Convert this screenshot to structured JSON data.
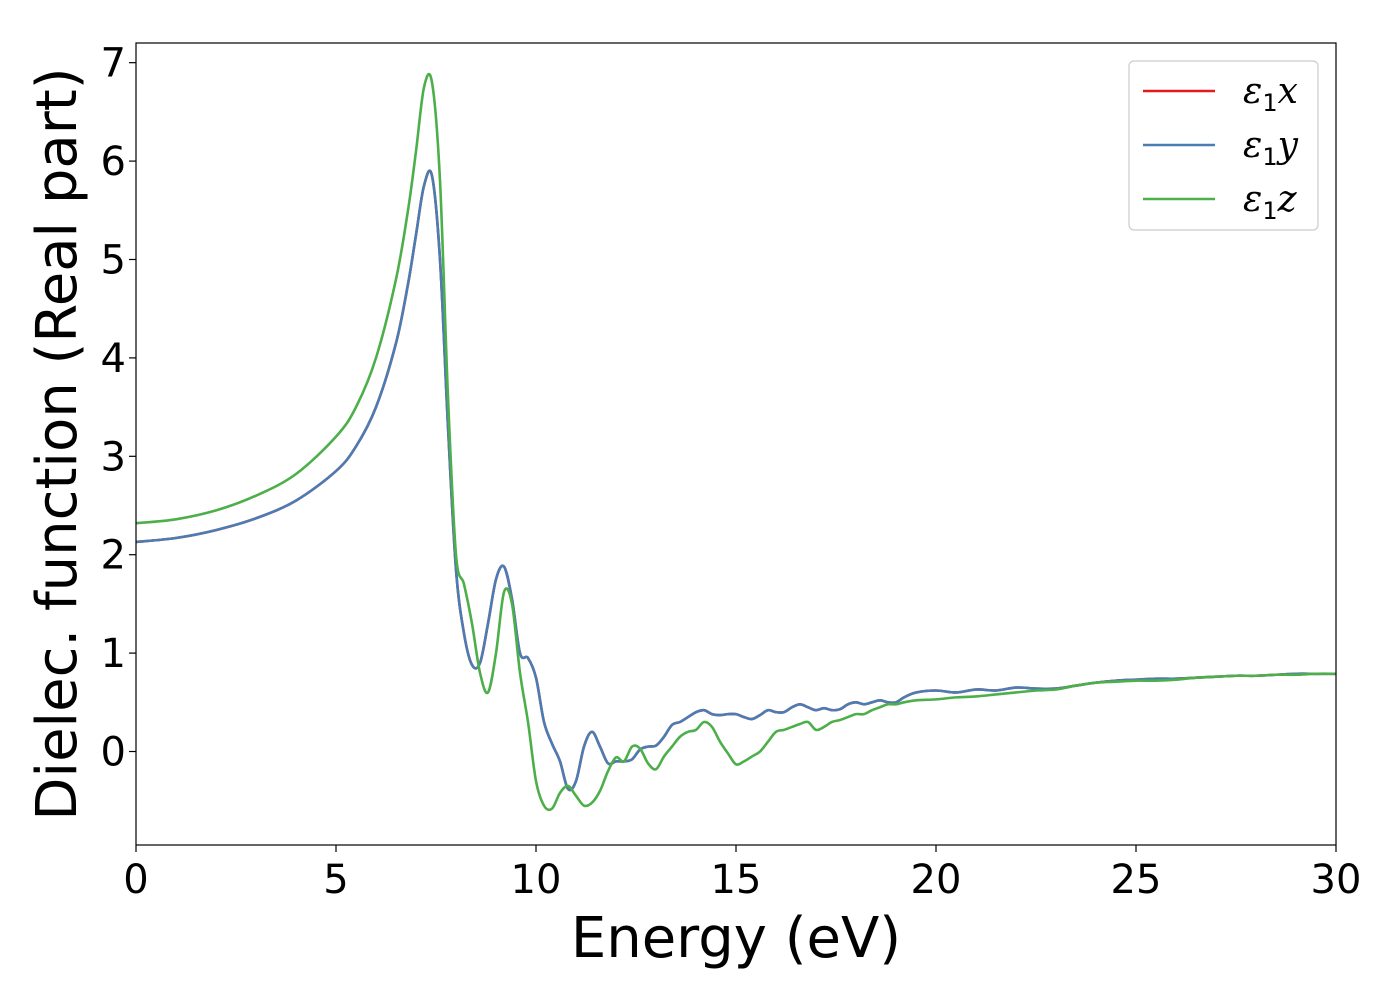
{
  "chart_data": {
    "type": "line",
    "xlabel": "Energy (eV)",
    "ylabel": "Dielec. function (Real part)",
    "xlim": [
      0,
      30
    ],
    "ylim": [
      -0.95,
      7.2
    ],
    "xticks": [
      0,
      5,
      10,
      15,
      20,
      25,
      30
    ],
    "yticks": [
      0,
      1,
      2,
      3,
      4,
      5,
      6,
      7
    ],
    "grid": false,
    "legend_position": "top-right",
    "series": [
      {
        "name": "ε1x",
        "color": "#e41a1c",
        "x": [
          0,
          1,
          2,
          3,
          4,
          5,
          5.5,
          6,
          6.5,
          6.8,
          7.0,
          7.2,
          7.4,
          7.6,
          7.8,
          8.0,
          8.2,
          8.4,
          8.6,
          8.8,
          9.0,
          9.2,
          9.4,
          9.6,
          9.8,
          10.0,
          10.2,
          10.4,
          10.6,
          10.8,
          11.0,
          11.2,
          11.4,
          11.6,
          11.8,
          12.0,
          12.2,
          12.4,
          12.6,
          12.8,
          13.0,
          13.2,
          13.4,
          13.6,
          13.8,
          14.0,
          14.2,
          14.4,
          14.6,
          14.8,
          15.0,
          15.2,
          15.4,
          15.6,
          15.8,
          16.0,
          16.2,
          16.4,
          16.6,
          16.8,
          17.0,
          17.2,
          17.4,
          17.6,
          17.8,
          18.0,
          18.2,
          18.4,
          18.6,
          18.8,
          19.0,
          19.2,
          19.5,
          20.0,
          20.5,
          21.0,
          21.5,
          22.0,
          22.5,
          23.0,
          23.5,
          24.0,
          24.5,
          25.0,
          25.5,
          26.0,
          26.5,
          27.0,
          27.5,
          28.0,
          28.5,
          29.0,
          29.5,
          30.0
        ],
        "y": [
          2.13,
          2.17,
          2.25,
          2.37,
          2.55,
          2.85,
          3.1,
          3.5,
          4.15,
          4.75,
          5.25,
          5.75,
          5.85,
          5.0,
          3.3,
          1.85,
          1.2,
          0.88,
          0.9,
          1.3,
          1.75,
          1.88,
          1.55,
          1.0,
          0.95,
          0.75,
          0.3,
          0.08,
          -0.1,
          -0.38,
          -0.3,
          0.05,
          0.2,
          0.05,
          -0.12,
          -0.1,
          -0.1,
          -0.08,
          0.02,
          0.05,
          0.06,
          0.15,
          0.27,
          0.3,
          0.35,
          0.4,
          0.42,
          0.38,
          0.37,
          0.38,
          0.38,
          0.35,
          0.33,
          0.37,
          0.42,
          0.4,
          0.4,
          0.45,
          0.48,
          0.45,
          0.42,
          0.44,
          0.42,
          0.43,
          0.48,
          0.5,
          0.48,
          0.5,
          0.52,
          0.5,
          0.5,
          0.55,
          0.6,
          0.62,
          0.6,
          0.63,
          0.62,
          0.65,
          0.64,
          0.64,
          0.67,
          0.7,
          0.72,
          0.73,
          0.74,
          0.74,
          0.75,
          0.76,
          0.77,
          0.77,
          0.78,
          0.79,
          0.79,
          0.79
        ]
      },
      {
        "name": "ε1y",
        "color": "#4a7db3",
        "x": [
          0,
          1,
          2,
          3,
          4,
          5,
          5.5,
          6,
          6.5,
          6.8,
          7.0,
          7.2,
          7.4,
          7.6,
          7.8,
          8.0,
          8.2,
          8.4,
          8.6,
          8.8,
          9.0,
          9.2,
          9.4,
          9.6,
          9.8,
          10.0,
          10.2,
          10.4,
          10.6,
          10.8,
          11.0,
          11.2,
          11.4,
          11.6,
          11.8,
          12.0,
          12.2,
          12.4,
          12.6,
          12.8,
          13.0,
          13.2,
          13.4,
          13.6,
          13.8,
          14.0,
          14.2,
          14.4,
          14.6,
          14.8,
          15.0,
          15.2,
          15.4,
          15.6,
          15.8,
          16.0,
          16.2,
          16.4,
          16.6,
          16.8,
          17.0,
          17.2,
          17.4,
          17.6,
          17.8,
          18.0,
          18.2,
          18.4,
          18.6,
          18.8,
          19.0,
          19.2,
          19.5,
          20.0,
          20.5,
          21.0,
          21.5,
          22.0,
          22.5,
          23.0,
          23.5,
          24.0,
          24.5,
          25.0,
          25.5,
          26.0,
          26.5,
          27.0,
          27.5,
          28.0,
          28.5,
          29.0,
          29.5,
          30.0
        ],
        "y": [
          2.13,
          2.17,
          2.25,
          2.37,
          2.55,
          2.85,
          3.1,
          3.5,
          4.15,
          4.75,
          5.25,
          5.75,
          5.85,
          5.0,
          3.3,
          1.85,
          1.2,
          0.88,
          0.9,
          1.3,
          1.75,
          1.88,
          1.55,
          1.0,
          0.95,
          0.75,
          0.3,
          0.08,
          -0.1,
          -0.38,
          -0.3,
          0.05,
          0.2,
          0.05,
          -0.12,
          -0.1,
          -0.1,
          -0.08,
          0.02,
          0.05,
          0.06,
          0.15,
          0.27,
          0.3,
          0.35,
          0.4,
          0.42,
          0.38,
          0.37,
          0.38,
          0.38,
          0.35,
          0.33,
          0.37,
          0.42,
          0.4,
          0.4,
          0.45,
          0.48,
          0.45,
          0.42,
          0.44,
          0.42,
          0.43,
          0.48,
          0.5,
          0.48,
          0.5,
          0.52,
          0.5,
          0.5,
          0.55,
          0.6,
          0.62,
          0.6,
          0.63,
          0.62,
          0.65,
          0.64,
          0.64,
          0.67,
          0.7,
          0.72,
          0.73,
          0.74,
          0.74,
          0.75,
          0.76,
          0.77,
          0.77,
          0.78,
          0.79,
          0.79,
          0.79
        ]
      },
      {
        "name": "ε1z",
        "color": "#4daf4a",
        "x": [
          0,
          1,
          2,
          3,
          4,
          5,
          5.5,
          6,
          6.5,
          6.8,
          7.0,
          7.2,
          7.4,
          7.6,
          7.8,
          8.0,
          8.2,
          8.4,
          8.6,
          8.8,
          9.0,
          9.2,
          9.4,
          9.6,
          9.8,
          10.0,
          10.2,
          10.4,
          10.6,
          10.8,
          11.0,
          11.2,
          11.4,
          11.6,
          11.8,
          12.0,
          12.2,
          12.4,
          12.6,
          12.8,
          13.0,
          13.2,
          13.4,
          13.6,
          13.8,
          14.0,
          14.2,
          14.4,
          14.6,
          14.8,
          15.0,
          15.2,
          15.4,
          15.6,
          15.8,
          16.0,
          16.2,
          16.4,
          16.6,
          16.8,
          17.0,
          17.2,
          17.4,
          17.6,
          17.8,
          18.0,
          18.2,
          18.4,
          18.6,
          18.8,
          19.0,
          19.2,
          19.5,
          20.0,
          20.5,
          21.0,
          21.5,
          22.0,
          22.5,
          23.0,
          23.5,
          24.0,
          24.5,
          25.0,
          25.5,
          26.0,
          26.5,
          27.0,
          27.5,
          28.0,
          28.5,
          29.0,
          29.5,
          30.0
        ],
        "y": [
          2.32,
          2.36,
          2.45,
          2.6,
          2.82,
          3.2,
          3.5,
          4.0,
          4.8,
          5.5,
          6.1,
          6.75,
          6.8,
          5.8,
          3.6,
          2.0,
          1.7,
          1.3,
          0.8,
          0.6,
          1.0,
          1.62,
          1.5,
          0.8,
          0.3,
          -0.3,
          -0.55,
          -0.58,
          -0.42,
          -0.35,
          -0.45,
          -0.55,
          -0.52,
          -0.4,
          -0.2,
          -0.06,
          -0.1,
          0.05,
          0.03,
          -0.12,
          -0.18,
          -0.05,
          0.05,
          0.15,
          0.2,
          0.22,
          0.3,
          0.25,
          0.1,
          -0.02,
          -0.13,
          -0.1,
          -0.05,
          0.0,
          0.1,
          0.2,
          0.22,
          0.25,
          0.28,
          0.3,
          0.22,
          0.25,
          0.3,
          0.32,
          0.35,
          0.38,
          0.38,
          0.42,
          0.45,
          0.48,
          0.48,
          0.5,
          0.52,
          0.53,
          0.55,
          0.56,
          0.58,
          0.6,
          0.62,
          0.63,
          0.67,
          0.7,
          0.71,
          0.72,
          0.72,
          0.73,
          0.75,
          0.76,
          0.77,
          0.77,
          0.78,
          0.78,
          0.79,
          0.79
        ]
      }
    ]
  }
}
